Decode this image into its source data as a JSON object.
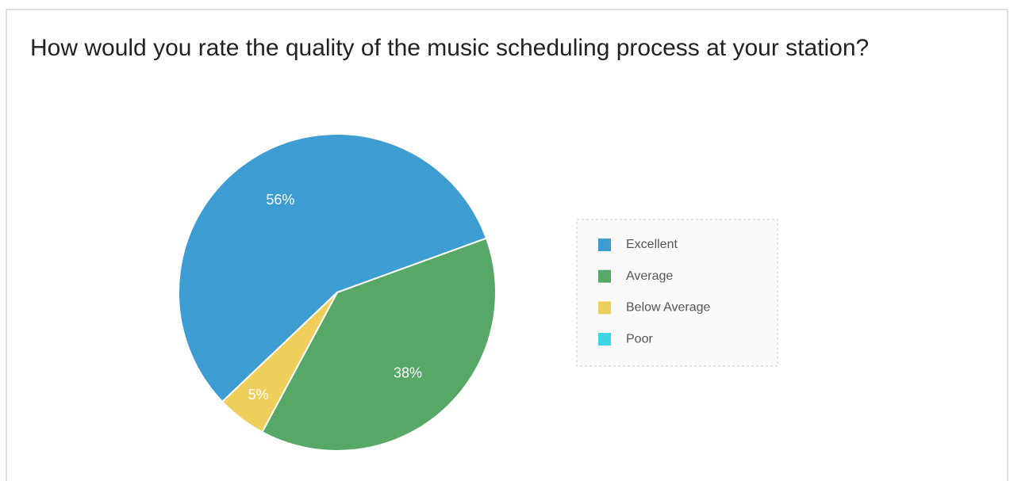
{
  "chart_data": {
    "type": "pie",
    "title": "How would you rate the quality of the music scheduling process at your station?",
    "categories": [
      "Excellent",
      "Average",
      "Below Average",
      "Poor"
    ],
    "values": [
      56,
      38,
      5,
      0
    ],
    "value_labels": [
      "56%",
      "38%",
      "5%",
      null
    ],
    "colors": [
      "#3d9dd2",
      "#57a866",
      "#efcf5b",
      "#3dd5e6"
    ],
    "legend": "right"
  }
}
